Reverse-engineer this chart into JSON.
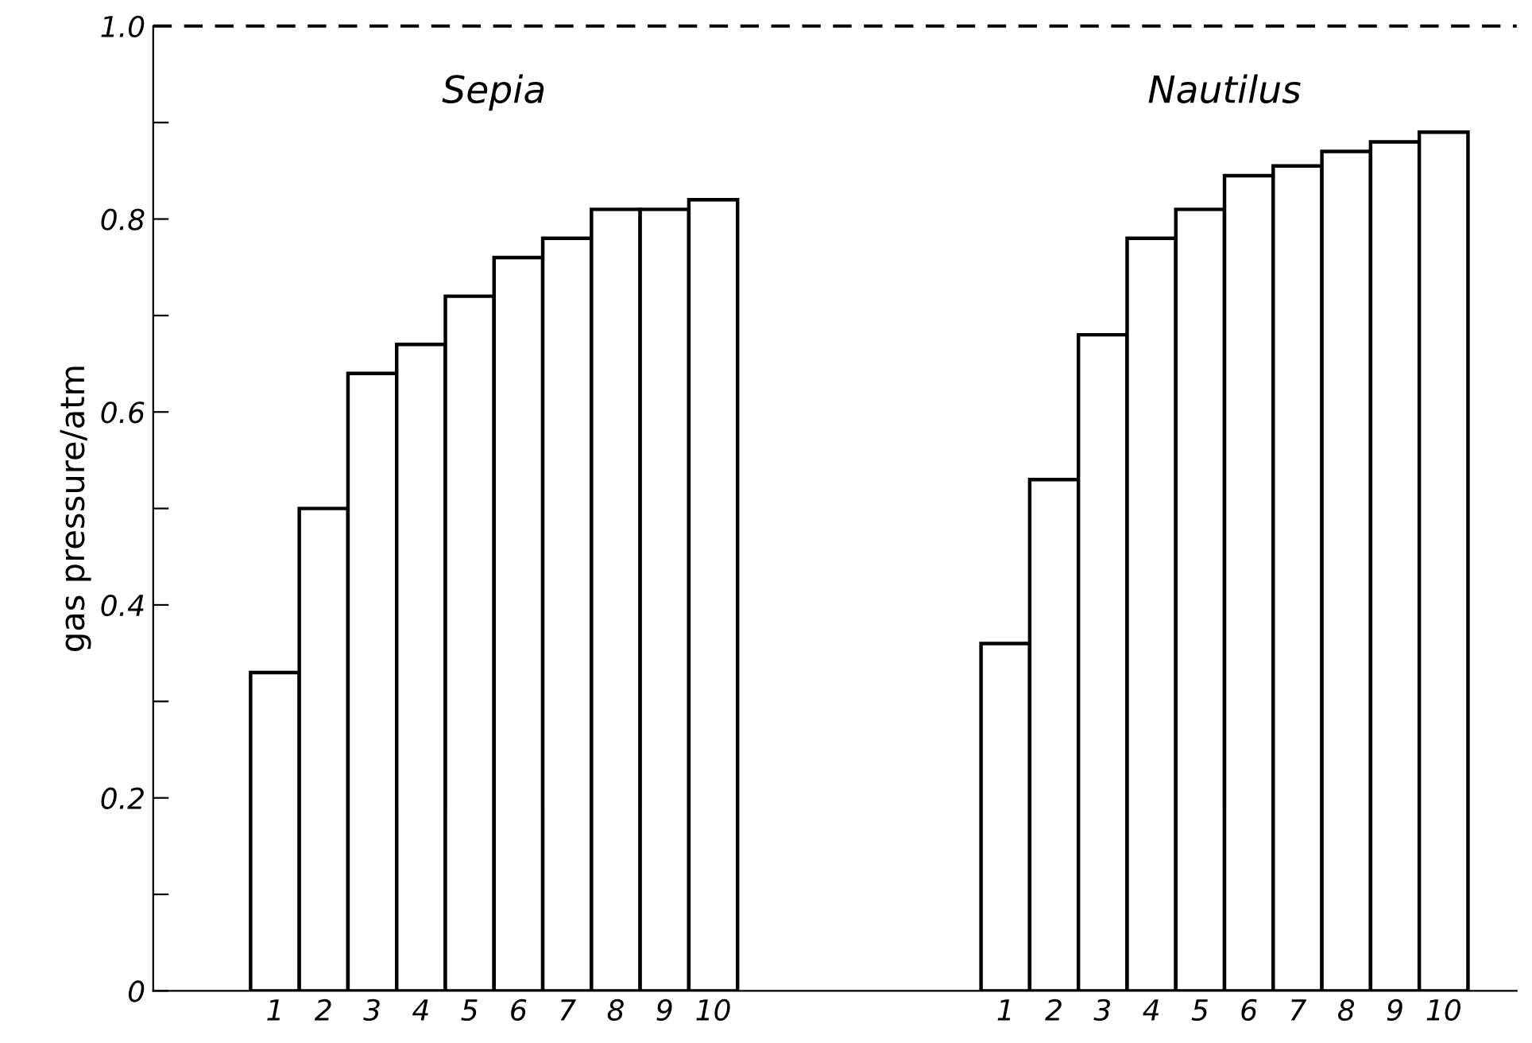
{
  "chart_data": {
    "type": "bar",
    "ylabel": "gas pressure/atm",
    "categories": [
      null,
      null,
      "1",
      "2",
      "3",
      "4",
      "5",
      "6",
      "7",
      "8",
      "9",
      "10",
      null,
      null,
      null,
      null,
      null,
      "1",
      "2",
      "3",
      "4",
      "5",
      "6",
      "7",
      "8",
      "9",
      "10",
      null
    ],
    "series": [
      {
        "color": "#ffffff",
        "values": [
          null,
          null,
          0.33,
          0.5,
          0.64,
          0.67,
          0.72,
          0.76,
          0.78,
          0.81,
          0.81,
          0.82,
          null,
          null,
          null,
          null,
          null,
          0.36,
          0.53,
          0.68,
          0.78,
          0.81,
          0.845,
          0.855,
          0.87,
          0.88,
          0.89,
          null
        ]
      }
    ],
    "annotations": [
      "Sepia",
      "Nautilus"
    ],
    "ylim": [
      0,
      1.0
    ],
    "yticks": [
      0,
      {
        "value": 0.1,
        "label": null
      },
      0.2,
      {
        "value": 0.3,
        "label": null
      },
      0.4,
      {
        "value": 0.5,
        "label": null
      },
      0.6,
      {
        "value": 0.7,
        "label": null
      },
      0.8,
      {
        "value": 0.9,
        "label": null
      },
      {
        "value": 1.0,
        "label": "1.0"
      }
    ],
    "ref_lines": [
      {
        "axis": "y",
        "value": 1.0,
        "color": "#000000",
        "line_style": "dashed"
      }
    ],
    "grid": false,
    "legend": false
  }
}
